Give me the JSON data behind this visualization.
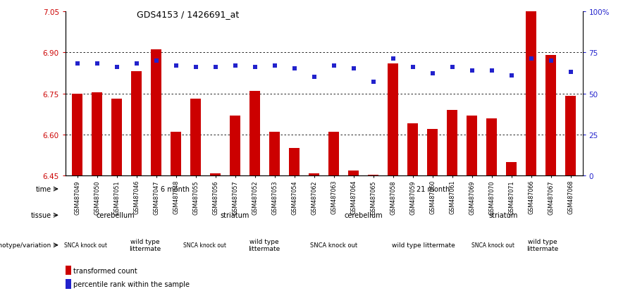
{
  "title": "GDS4153 / 1426691_at",
  "samples": [
    "GSM487049",
    "GSM487050",
    "GSM487051",
    "GSM487046",
    "GSM487047",
    "GSM487048",
    "GSM487055",
    "GSM487056",
    "GSM487057",
    "GSM487052",
    "GSM487053",
    "GSM487054",
    "GSM487062",
    "GSM487063",
    "GSM487064",
    "GSM487065",
    "GSM487058",
    "GSM487059",
    "GSM487060",
    "GSM487061",
    "GSM487069",
    "GSM487070",
    "GSM487071",
    "GSM487066",
    "GSM487067",
    "GSM487068"
  ],
  "bar_values": [
    6.75,
    6.755,
    6.73,
    6.83,
    6.91,
    6.61,
    6.73,
    6.46,
    6.67,
    6.76,
    6.61,
    6.55,
    6.46,
    6.61,
    6.47,
    6.455,
    6.86,
    6.64,
    6.62,
    6.69,
    6.67,
    6.66,
    6.5,
    7.05,
    6.89,
    6.74
  ],
  "percentile_values": [
    68,
    68,
    66,
    68,
    70,
    67,
    66,
    66,
    67,
    66,
    67,
    65,
    60,
    67,
    65,
    57,
    71,
    66,
    62,
    66,
    64,
    64,
    61,
    71,
    70,
    63
  ],
  "bar_color": "#cc0000",
  "percentile_color": "#2222cc",
  "ymin": 6.45,
  "ymax": 7.05,
  "yticks": [
    6.45,
    6.6,
    6.75,
    6.9,
    7.05
  ],
  "right_ytick_labels": [
    "0",
    "25",
    "50",
    "75",
    "100%"
  ],
  "right_ytick_vals": [
    0,
    25,
    50,
    75,
    100
  ],
  "grid_values": [
    6.6,
    6.75,
    6.9
  ],
  "time_spans": [
    {
      "label": "6 month",
      "start": 0,
      "end": 11,
      "color": "#99dd88"
    },
    {
      "label": "21 month",
      "start": 12,
      "end": 25,
      "color": "#77cc66"
    }
  ],
  "tissue_spans": [
    {
      "label": "cerebellum",
      "start": 0,
      "end": 5,
      "color": "#aaaadd"
    },
    {
      "label": "striatum",
      "start": 6,
      "end": 11,
      "color": "#8888cc"
    },
    {
      "label": "cerebellum",
      "start": 12,
      "end": 18,
      "color": "#aaaadd"
    },
    {
      "label": "striatum",
      "start": 19,
      "end": 25,
      "color": "#8888cc"
    }
  ],
  "geno_spans": [
    {
      "label": "SNCA knock out",
      "start": 0,
      "end": 2,
      "color": "#dd9999",
      "fontsize": 5.5
    },
    {
      "label": "wild type\nlittermate",
      "start": 3,
      "end": 5,
      "color": "#ffbbbb",
      "fontsize": 6.5
    },
    {
      "label": "SNCA knock out",
      "start": 6,
      "end": 8,
      "color": "#dd9999",
      "fontsize": 5.5
    },
    {
      "label": "wild type\nlittermate",
      "start": 9,
      "end": 11,
      "color": "#ffbbbb",
      "fontsize": 6.5
    },
    {
      "label": "SNCA knock out",
      "start": 12,
      "end": 15,
      "color": "#dd9999",
      "fontsize": 6.0
    },
    {
      "label": "wild type littermate",
      "start": 16,
      "end": 20,
      "color": "#ffbbbb",
      "fontsize": 6.5
    },
    {
      "label": "SNCA knock out",
      "start": 21,
      "end": 22,
      "color": "#dd9999",
      "fontsize": 5.5
    },
    {
      "label": "wild type\nlittermate",
      "start": 23,
      "end": 25,
      "color": "#ffbbbb",
      "fontsize": 6.5
    }
  ],
  "legend_bar_label": "transformed count",
  "legend_pct_label": "percentile rank within the sample"
}
